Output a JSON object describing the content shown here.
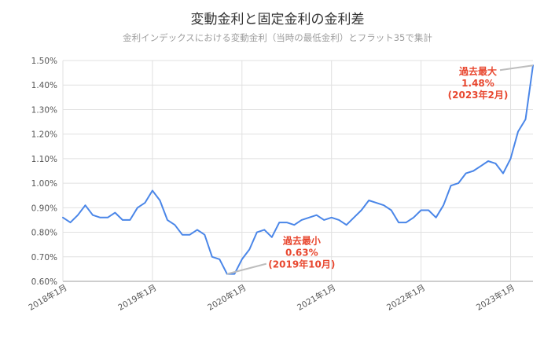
{
  "chart_data": {
    "type": "line",
    "title": "変動金利と固定金利の金利差",
    "subtitle": "金利インデックスにおける変動金利（当時の最低金利）とフラット35で集計",
    "xlabel": "",
    "ylabel": "",
    "ylim": [
      0.006,
      0.015
    ],
    "ytick_labels": [
      "0.60%",
      "0.70%",
      "0.80%",
      "0.90%",
      "1.00%",
      "1.10%",
      "1.20%",
      "1.30%",
      "1.40%",
      "1.50%"
    ],
    "xtick_labels": [
      "2018年1月",
      "2019年1月",
      "2020年1月",
      "2021年1月",
      "2022年1月",
      "2023年1月"
    ],
    "grid": true,
    "legend": "none",
    "series": [
      {
        "color": "#4a86e8",
        "values": [
          0.0086,
          0.0084,
          0.0087,
          0.0091,
          0.0087,
          0.0086,
          0.0086,
          0.0088,
          0.0085,
          0.0085,
          0.009,
          0.0092,
          0.0097,
          0.0093,
          0.0085,
          0.0083,
          0.0079,
          0.0079,
          0.0081,
          0.0079,
          0.007,
          0.0069,
          0.0063,
          0.0063,
          0.0069,
          0.0073,
          0.008,
          0.0081,
          0.0078,
          0.0084,
          0.0084,
          0.0083,
          0.0085,
          0.0086,
          0.0087,
          0.0085,
          0.0086,
          0.0085,
          0.0083,
          0.0086,
          0.0089,
          0.0093,
          0.0092,
          0.0091,
          0.0089,
          0.0084,
          0.0084,
          0.0086,
          0.0089,
          0.0089,
          0.0086,
          0.0091,
          0.0099,
          0.01,
          0.0104,
          0.0105,
          0.0107,
          0.0109,
          0.0108,
          0.0104,
          0.011,
          0.0121,
          0.0126,
          0.0148
        ]
      }
    ],
    "annotations": [
      {
        "lines": [
          "過去最大",
          "1.48%",
          "(2023年2月)"
        ],
        "index": 63,
        "value": 0.0148
      },
      {
        "lines": [
          "過去最小",
          "0.63%",
          "(2019年10月)"
        ],
        "index": 22,
        "value": 0.0063
      }
    ]
  }
}
